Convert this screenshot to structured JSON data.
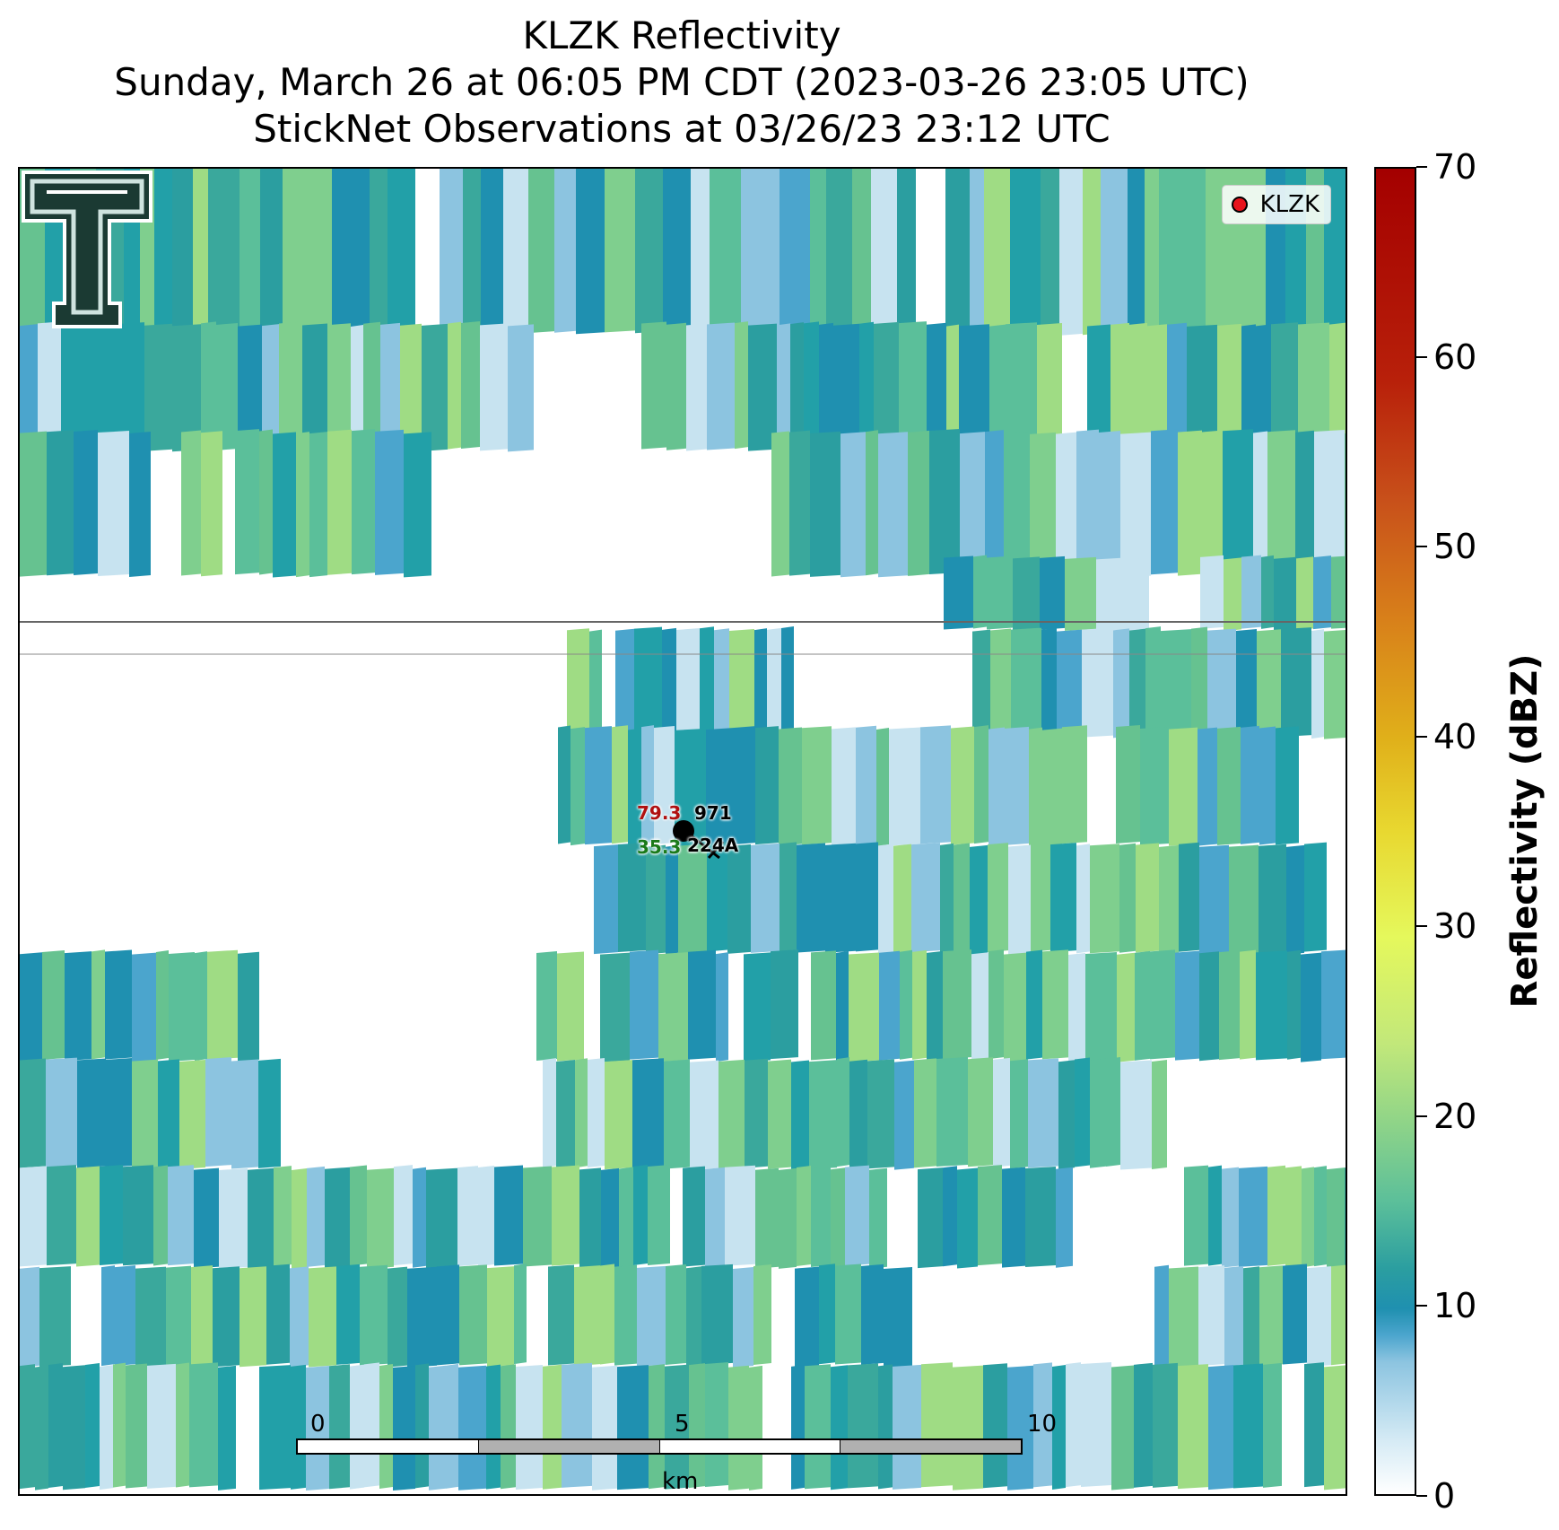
{
  "title": {
    "line1": "KLZK Reflectivity",
    "line2": "Sunday, March 26 at 06:05 PM CDT (2023-03-26 23:05 UTC)",
    "line3": "StickNet Observations at 03/26/23 23:12 UTC"
  },
  "legend": {
    "label": "KLZK",
    "marker_color": "#e8141c"
  },
  "station": {
    "temperature": "79.3",
    "dewpoint": "35.3",
    "pressure": "971",
    "id": "224A",
    "temp_color": "#b01010",
    "dew_color": "#1a7a1a"
  },
  "scalebar": {
    "unit": "km",
    "ticks": [
      "0",
      "5",
      "10"
    ]
  },
  "colorbar": {
    "label": "Reflectivity (dBZ)",
    "ticks": [
      "0",
      "10",
      "20",
      "30",
      "40",
      "50",
      "60",
      "70"
    ],
    "range": [
      0,
      70
    ]
  },
  "logo": {
    "name": "texas-tech-double-t-logo"
  }
}
